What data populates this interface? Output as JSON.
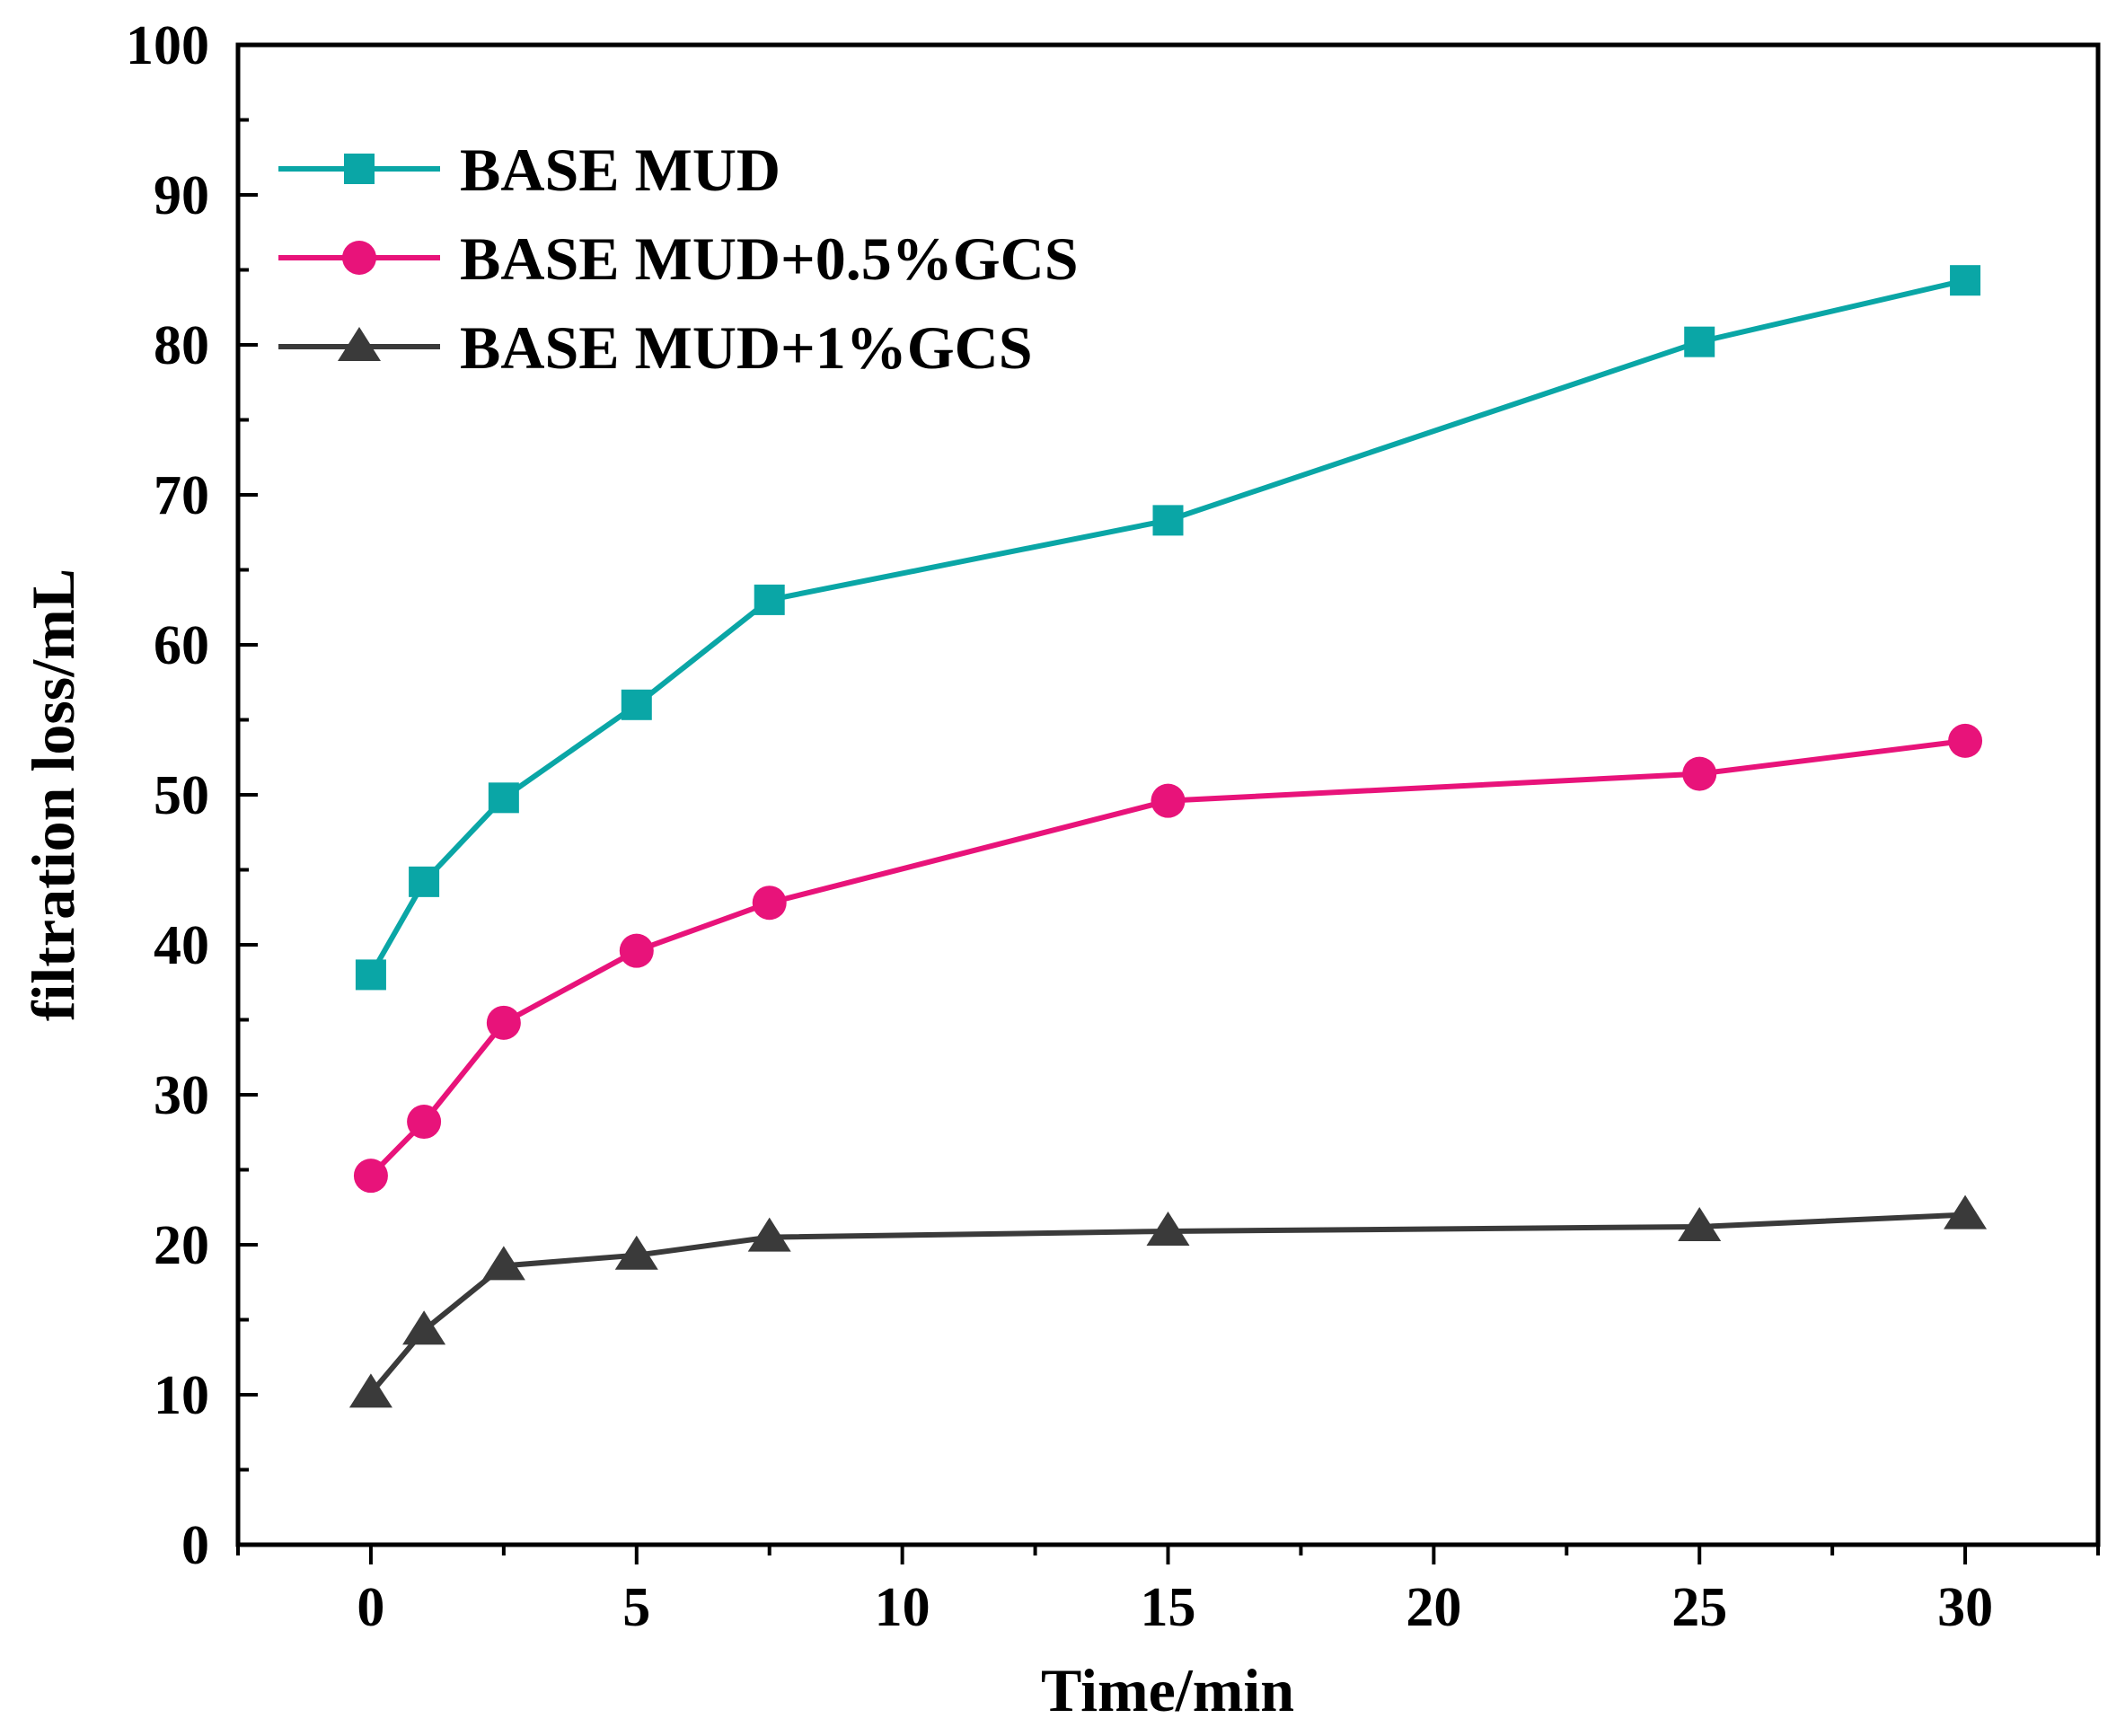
{
  "chart_data": {
    "type": "line",
    "title": "",
    "xlabel": "Time/min",
    "ylabel": "filtration loss/mL",
    "xlim": [
      -2.5,
      32.5
    ],
    "ylim": [
      0,
      100
    ],
    "xticks": [
      0,
      5,
      10,
      15,
      20,
      25,
      30
    ],
    "yticks": [
      0,
      10,
      20,
      30,
      40,
      50,
      60,
      70,
      80,
      90,
      100
    ],
    "grid": false,
    "legend_position": "top-left",
    "x": [
      0,
      1,
      2.5,
      5,
      7.5,
      15,
      25,
      30
    ],
    "series": [
      {
        "name": "BASE MUD",
        "color": "#0aa6a6",
        "marker": "square",
        "values": [
          38.0,
          44.2,
          49.8,
          56.0,
          63.0,
          68.3,
          80.2,
          84.3
        ]
      },
      {
        "name": "BASE MUD+0.5%GCS",
        "color": "#e8137a",
        "marker": "circle",
        "values": [
          24.6,
          28.2,
          34.8,
          39.6,
          42.8,
          49.6,
          51.4,
          53.6
        ]
      },
      {
        "name": "BASE MUD+1%GCS",
        "color": "#3a3a3a",
        "marker": "triangle",
        "values": [
          10.1,
          14.3,
          18.6,
          19.3,
          20.5,
          20.9,
          21.2,
          22.0
        ]
      }
    ]
  }
}
